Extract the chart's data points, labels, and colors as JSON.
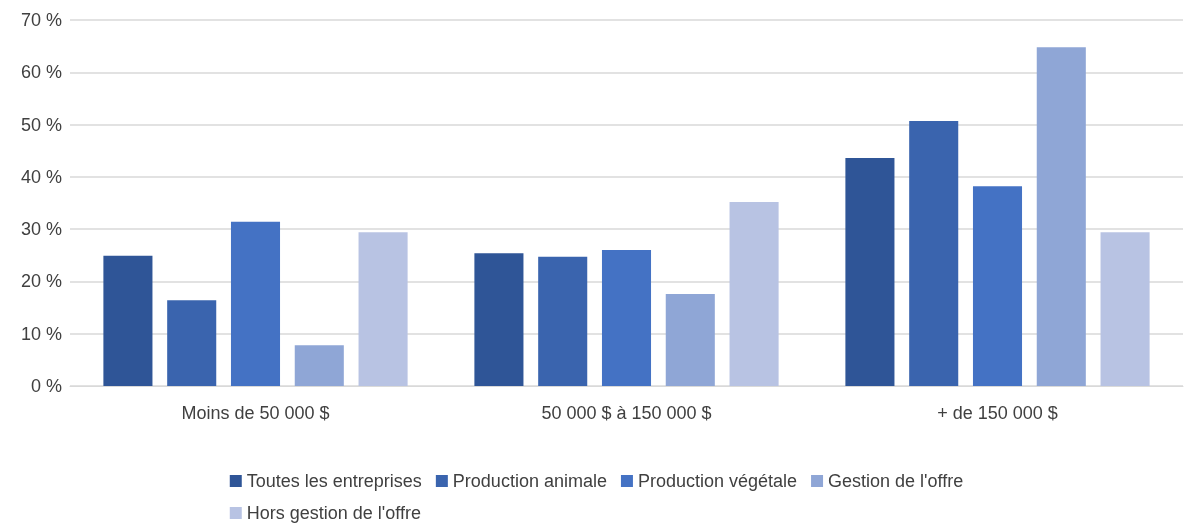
{
  "chart_data": {
    "type": "bar",
    "categories": [
      "Moins de 50 000 $",
      "50 000 $ à 150 000 $",
      "+ de 150 000 $"
    ],
    "series": [
      {
        "name": "Toutes les entreprises",
        "color": "#2f5597",
        "values": [
          24.9,
          25.4,
          43.6
        ]
      },
      {
        "name": "Production animale",
        "color": "#3a64ae",
        "values": [
          16.4,
          24.7,
          50.7
        ]
      },
      {
        "name": "Production végétale",
        "color": "#4472c4",
        "values": [
          31.4,
          26.0,
          38.2
        ]
      },
      {
        "name": "Gestion de l'offre",
        "color": "#8fa6d6",
        "values": [
          7.8,
          17.6,
          64.8
        ]
      },
      {
        "name": "Hors gestion de l'offre",
        "color": "#b8c3e3",
        "values": [
          29.4,
          35.2,
          29.4
        ]
      }
    ],
    "ylim": [
      0,
      70
    ],
    "yticks": [
      {
        "value": 0,
        "label": "0 %"
      },
      {
        "value": 10,
        "label": "10 %"
      },
      {
        "value": 20,
        "label": "20 %"
      },
      {
        "value": 30,
        "label": "30 %"
      },
      {
        "value": 40,
        "label": "40 %"
      },
      {
        "value": 50,
        "label": "50 %"
      },
      {
        "value": 60,
        "label": "60 %"
      },
      {
        "value": 70,
        "label": "70 %"
      }
    ],
    "grid": "y",
    "legend": "bottom"
  }
}
